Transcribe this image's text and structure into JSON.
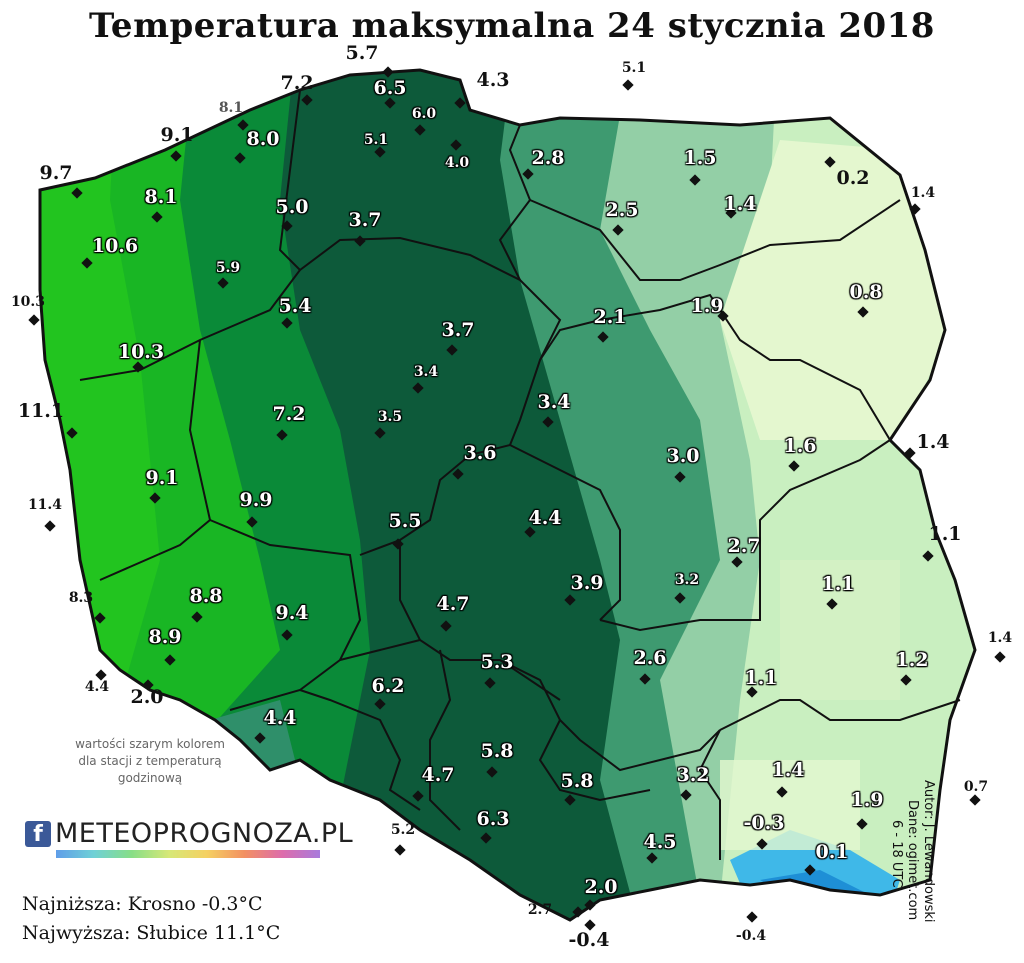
{
  "title": "Temperatura maksymalna 24 stycznia 2018",
  "note": "wartości szarym kolorem dla stacji z temperaturą godzinową",
  "logo": {
    "text": "METEOPROGNOZA.PL",
    "fb_icon": "facebook-icon"
  },
  "stats": {
    "min": "Najniższa: Krosno -0.3°C",
    "max": "Najwyższa: Słubice 11.1°C"
  },
  "credits": {
    "author": "Autor: J. Lewandowski",
    "data": "Dane: ogimet.com",
    "hours": "6 - 18 UTC"
  },
  "colors": {
    "warm": "#19c41a",
    "mid": "#0a7a3c",
    "dark": "#0d5a3a",
    "light": "#a8dbb8",
    "pale": "#e4f7cf",
    "cold": "#3fb8e8",
    "border": "#111111"
  },
  "stations": [
    {
      "v": "5.7"
    },
    {
      "v": "7.2"
    },
    {
      "v": "6.5"
    },
    {
      "v": "4.3"
    },
    {
      "v": "5.1"
    },
    {
      "v": "8.1"
    },
    {
      "v": "6.0"
    },
    {
      "v": "9.1"
    },
    {
      "v": "8.0"
    },
    {
      "v": "5.1"
    },
    {
      "v": "4.0"
    },
    {
      "v": "2.8"
    },
    {
      "v": "1.5"
    },
    {
      "v": "9.7"
    },
    {
      "v": "0.2"
    },
    {
      "v": "1.4"
    },
    {
      "v": "8.1"
    },
    {
      "v": "5.0"
    },
    {
      "v": "3.7"
    },
    {
      "v": "2.5"
    },
    {
      "v": "1.4"
    },
    {
      "v": "10.6"
    },
    {
      "v": "5.9"
    },
    {
      "v": "0.8"
    },
    {
      "v": "10.3"
    },
    {
      "v": "5.4"
    },
    {
      "v": "3.7"
    },
    {
      "v": "2.1"
    },
    {
      "v": "1.9"
    },
    {
      "v": "10.3"
    },
    {
      "v": "3.4"
    },
    {
      "v": "3.5"
    },
    {
      "v": "3.4"
    },
    {
      "v": "7.2"
    },
    {
      "v": "11.1"
    },
    {
      "v": "3.6"
    },
    {
      "v": "3.0"
    },
    {
      "v": "1.6"
    },
    {
      "v": "1.4"
    },
    {
      "v": "9.1"
    },
    {
      "v": "11.4"
    },
    {
      "v": "9.9"
    },
    {
      "v": "5.5"
    },
    {
      "v": "4.4"
    },
    {
      "v": "2.7"
    },
    {
      "v": "1.1"
    },
    {
      "v": "3.9"
    },
    {
      "v": "3.2"
    },
    {
      "v": "8.3"
    },
    {
      "v": "8.8"
    },
    {
      "v": "4.7"
    },
    {
      "v": "9.4"
    },
    {
      "v": "1.1"
    },
    {
      "v": "8.9"
    },
    {
      "v": "5.3"
    },
    {
      "v": "2.6"
    },
    {
      "v": "1.4"
    },
    {
      "v": "1.2"
    },
    {
      "v": "4.4"
    },
    {
      "v": "2.0"
    },
    {
      "v": "6.2"
    },
    {
      "v": "1.1"
    },
    {
      "v": "4.4"
    },
    {
      "v": "5.8"
    },
    {
      "v": "4.7"
    },
    {
      "v": "5.8"
    },
    {
      "v": "3.2"
    },
    {
      "v": "1.4"
    },
    {
      "v": "0.7"
    },
    {
      "v": "1.9"
    },
    {
      "v": "5.2"
    },
    {
      "v": "6.3"
    },
    {
      "v": "-0.3"
    },
    {
      "v": "4.5"
    },
    {
      "v": "0.1"
    },
    {
      "v": "2.0"
    },
    {
      "v": "2.7"
    },
    {
      "v": "-0.4"
    },
    {
      "v": "-0.4"
    }
  ]
}
